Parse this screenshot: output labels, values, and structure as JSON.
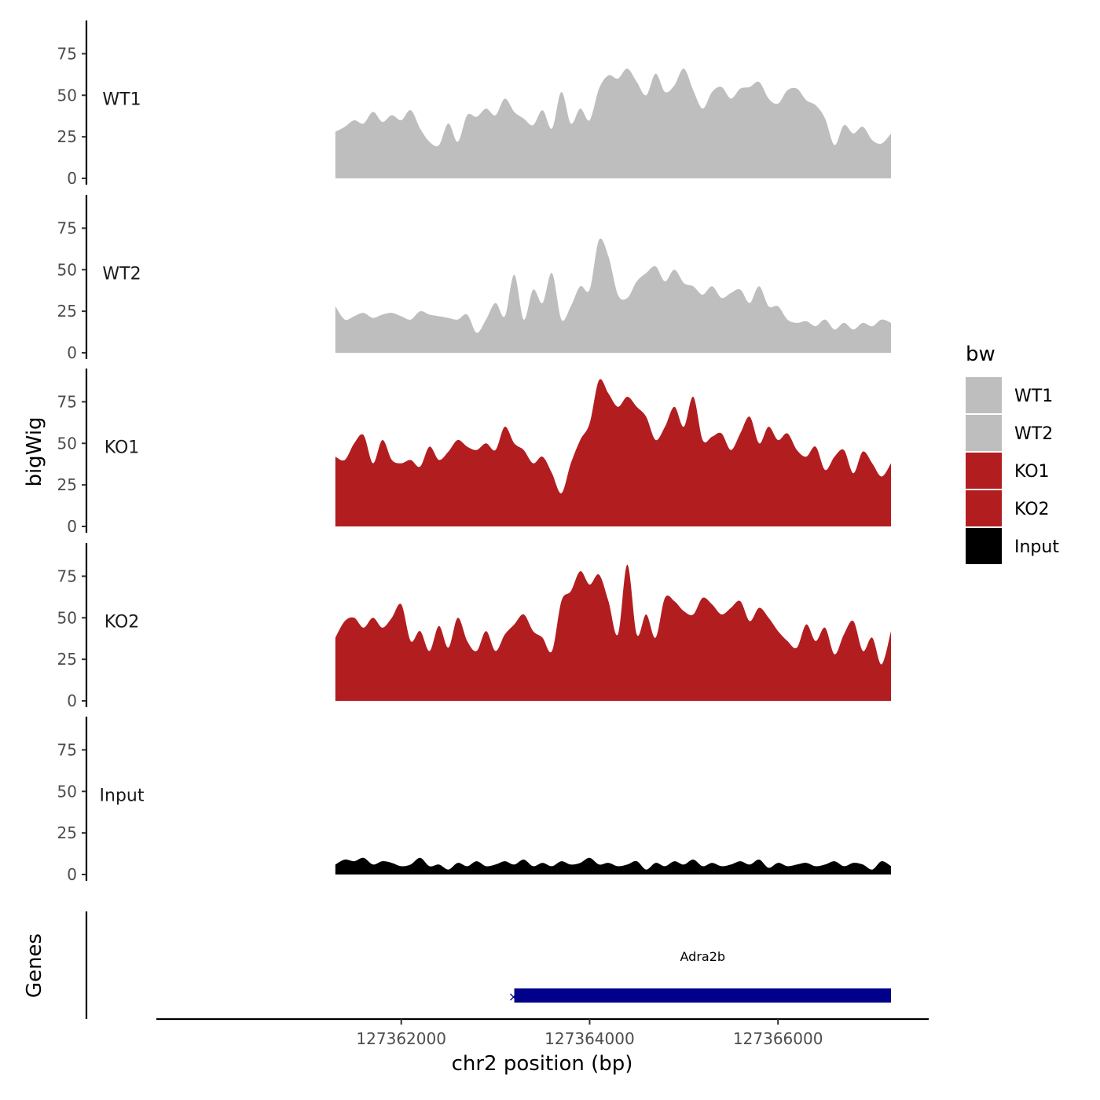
{
  "chart_data": {
    "type": "area",
    "xlabel": "chr2 position (bp)",
    "ylabel": "bigWig",
    "genes_label": "Genes",
    "xlim": [
      127359500,
      127367500
    ],
    "ylim": [
      0,
      95
    ],
    "x_ticks": [
      127362000,
      127364000,
      127366000
    ],
    "x_tick_labels": [
      "127362000",
      "127364000",
      "127366000"
    ],
    "y_ticks": [
      0,
      25,
      50,
      75
    ],
    "y_tick_labels": [
      "0",
      "25",
      "50",
      "75"
    ],
    "legend": {
      "title": "bw",
      "entries": [
        {
          "name": "WT1",
          "color": "#bebebe"
        },
        {
          "name": "WT2",
          "color": "#bebebe"
        },
        {
          "name": "KO1",
          "color": "#b21e20"
        },
        {
          "name": "KO2",
          "color": "#b21e20"
        },
        {
          "name": "Input",
          "color": "#000000"
        }
      ]
    },
    "series": [
      {
        "name": "WT1",
        "color": "#bebebe",
        "x": [
          127361300,
          127361400,
          127361500,
          127361600,
          127361700,
          127361800,
          127361900,
          127362000,
          127362100,
          127362200,
          127362300,
          127362400,
          127362500,
          127362600,
          127362700,
          127362800,
          127362900,
          127363000,
          127363100,
          127363200,
          127363300,
          127363400,
          127363500,
          127363600,
          127363700,
          127363800,
          127363900,
          127364000,
          127364100,
          127364200,
          127364300,
          127364400,
          127364500,
          127364600,
          127364700,
          127364800,
          127364900,
          127365000,
          127365100,
          127365200,
          127365300,
          127365400,
          127365500,
          127365600,
          127365700,
          127365800,
          127365900,
          127366000,
          127366100,
          127366200,
          127366300,
          127366400,
          127366500,
          127366600,
          127366700,
          127366800,
          127366900,
          127367000,
          127367100,
          127367200
        ],
        "values": [
          28,
          31,
          35,
          33,
          40,
          34,
          38,
          35,
          41,
          30,
          22,
          20,
          33,
          22,
          38,
          37,
          42,
          38,
          48,
          40,
          36,
          32,
          41,
          30,
          52,
          33,
          42,
          35,
          54,
          62,
          60,
          66,
          58,
          50,
          63,
          52,
          56,
          66,
          53,
          42,
          52,
          55,
          48,
          54,
          55,
          58,
          48,
          45,
          53,
          54,
          47,
          44,
          36,
          20,
          32,
          27,
          31,
          23,
          21,
          27
        ]
      },
      {
        "name": "WT2",
        "color": "#bebebe",
        "x": [
          127361300,
          127361400,
          127361500,
          127361600,
          127361700,
          127361800,
          127361900,
          127362000,
          127362100,
          127362200,
          127362300,
          127362400,
          127362500,
          127362600,
          127362700,
          127362800,
          127362900,
          127363000,
          127363100,
          127363200,
          127363300,
          127363400,
          127363500,
          127363600,
          127363700,
          127363800,
          127363900,
          127364000,
          127364100,
          127364200,
          127364300,
          127364400,
          127364500,
          127364600,
          127364700,
          127364800,
          127364900,
          127365000,
          127365100,
          127365200,
          127365300,
          127365400,
          127365500,
          127365600,
          127365700,
          127365800,
          127365900,
          127366000,
          127366100,
          127366200,
          127366300,
          127366400,
          127366500,
          127366600,
          127366700,
          127366800,
          127366900,
          127367000,
          127367100,
          127367200
        ],
        "values": [
          28,
          20,
          22,
          24,
          21,
          23,
          24,
          22,
          20,
          25,
          23,
          22,
          21,
          20,
          23,
          12,
          20,
          30,
          22,
          47,
          20,
          38,
          30,
          48,
          20,
          28,
          40,
          38,
          68,
          58,
          35,
          33,
          43,
          48,
          52,
          43,
          50,
          42,
          40,
          35,
          40,
          33,
          36,
          38,
          30,
          40,
          28,
          28,
          20,
          18,
          19,
          16,
          20,
          14,
          18,
          14,
          18,
          16,
          20,
          18
        ]
      },
      {
        "name": "KO1",
        "color": "#b21e20",
        "x": [
          127361300,
          127361400,
          127361500,
          127361600,
          127361700,
          127361800,
          127361900,
          127362000,
          127362100,
          127362200,
          127362300,
          127362400,
          127362500,
          127362600,
          127362700,
          127362800,
          127362900,
          127363000,
          127363100,
          127363200,
          127363300,
          127363400,
          127363500,
          127363600,
          127363700,
          127363800,
          127363900,
          127364000,
          127364100,
          127364200,
          127364300,
          127364400,
          127364500,
          127364600,
          127364700,
          127364800,
          127364900,
          127365000,
          127365100,
          127365200,
          127365300,
          127365400,
          127365500,
          127365600,
          127365700,
          127365800,
          127365900,
          127366000,
          127366100,
          127366200,
          127366300,
          127366400,
          127366500,
          127366600,
          127366700,
          127366800,
          127366900,
          127367000,
          127367100,
          127367200
        ],
        "values": [
          42,
          40,
          50,
          55,
          38,
          52,
          40,
          38,
          40,
          36,
          48,
          40,
          45,
          52,
          48,
          46,
          50,
          46,
          60,
          50,
          46,
          38,
          42,
          32,
          20,
          38,
          52,
          62,
          88,
          80,
          72,
          78,
          72,
          66,
          52,
          60,
          72,
          60,
          78,
          52,
          54,
          56,
          46,
          56,
          66,
          50,
          60,
          52,
          56,
          46,
          42,
          48,
          34,
          42,
          46,
          32,
          45,
          38,
          30,
          38
        ]
      },
      {
        "name": "KO2",
        "color": "#b21e20",
        "x": [
          127361300,
          127361400,
          127361500,
          127361600,
          127361700,
          127361800,
          127361900,
          127362000,
          127362100,
          127362200,
          127362300,
          127362400,
          127362500,
          127362600,
          127362700,
          127362800,
          127362900,
          127363000,
          127363100,
          127363200,
          127363300,
          127363400,
          127363500,
          127363600,
          127363700,
          127363800,
          127363900,
          127364000,
          127364100,
          127364200,
          127364300,
          127364400,
          127364500,
          127364600,
          127364700,
          127364800,
          127364900,
          127365000,
          127365100,
          127365200,
          127365300,
          127365400,
          127365500,
          127365600,
          127365700,
          127365800,
          127365900,
          127366000,
          127366100,
          127366200,
          127366300,
          127366400,
          127366500,
          127366600,
          127366700,
          127366800,
          127366900,
          127367000,
          127367100,
          127367200
        ],
        "values": [
          38,
          48,
          50,
          44,
          50,
          44,
          50,
          58,
          36,
          42,
          30,
          45,
          32,
          50,
          36,
          30,
          42,
          30,
          40,
          46,
          52,
          42,
          38,
          30,
          60,
          66,
          78,
          70,
          76,
          60,
          40,
          82,
          40,
          52,
          38,
          62,
          60,
          54,
          52,
          62,
          58,
          52,
          56,
          60,
          48,
          56,
          50,
          42,
          36,
          32,
          46,
          36,
          44,
          28,
          40,
          48,
          30,
          38,
          22,
          42
        ]
      },
      {
        "name": "Input",
        "color": "#000000",
        "x": [
          127361300,
          127361400,
          127361500,
          127361600,
          127361700,
          127361800,
          127361900,
          127362000,
          127362100,
          127362200,
          127362300,
          127362400,
          127362500,
          127362600,
          127362700,
          127362800,
          127362900,
          127363000,
          127363100,
          127363200,
          127363300,
          127363400,
          127363500,
          127363600,
          127363700,
          127363800,
          127363900,
          127364000,
          127364100,
          127364200,
          127364300,
          127364400,
          127364500,
          127364600,
          127364700,
          127364800,
          127364900,
          127365000,
          127365100,
          127365200,
          127365300,
          127365400,
          127365500,
          127365600,
          127365700,
          127365800,
          127365900,
          127366000,
          127366100,
          127366200,
          127366300,
          127366400,
          127366500,
          127366600,
          127366700,
          127366800,
          127366900,
          127367000,
          127367100,
          127367200
        ],
        "values": [
          6,
          9,
          8,
          10,
          6,
          8,
          7,
          5,
          6,
          10,
          5,
          6,
          3,
          7,
          5,
          8,
          5,
          6,
          8,
          6,
          9,
          5,
          7,
          5,
          8,
          6,
          7,
          10,
          6,
          7,
          5,
          6,
          8,
          3,
          7,
          5,
          8,
          6,
          9,
          5,
          7,
          5,
          6,
          8,
          6,
          9,
          4,
          7,
          5,
          6,
          7,
          5,
          6,
          8,
          5,
          7,
          6,
          3,
          8,
          5
        ]
      }
    ],
    "gene": {
      "name": "Adra2b",
      "start": 127363200,
      "end": 127367200,
      "color": "#00008b"
    }
  }
}
